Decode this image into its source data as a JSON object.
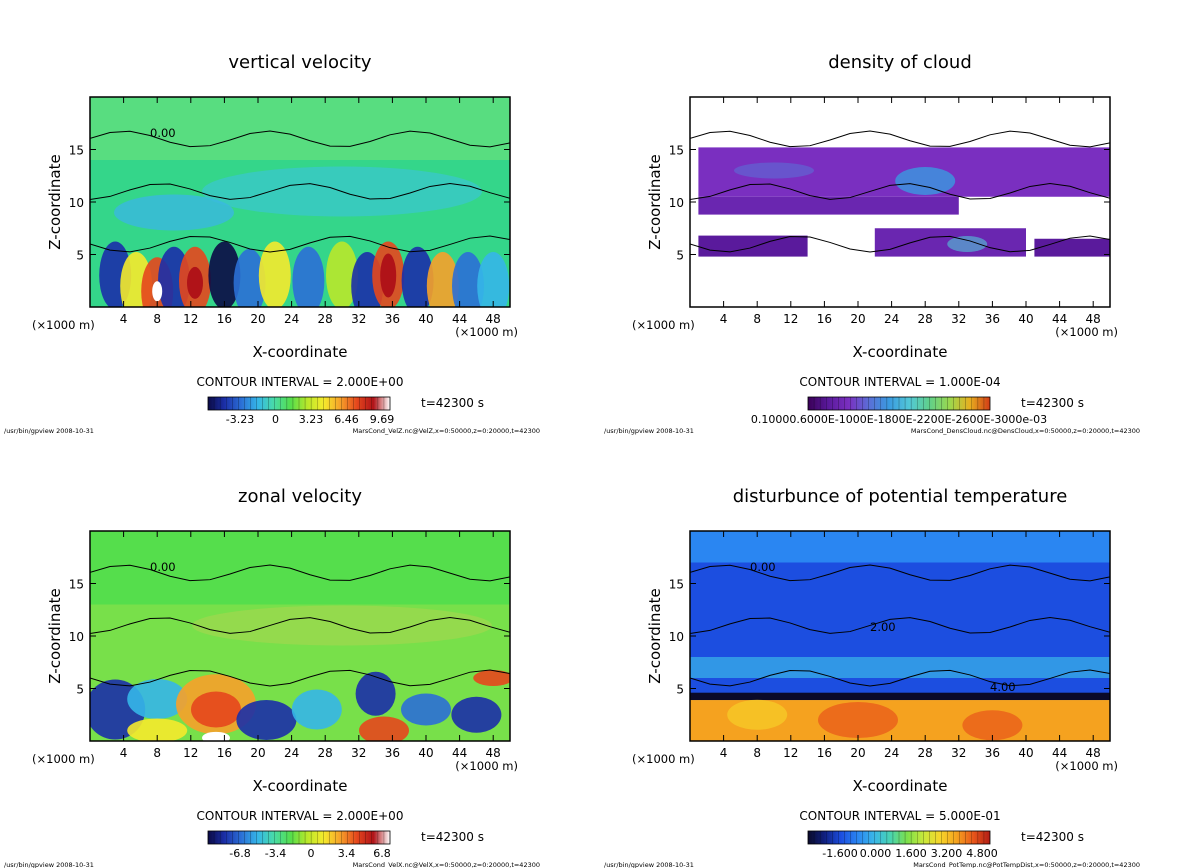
{
  "chart_data": [
    {
      "type": "heatmap",
      "title": "vertical velocity",
      "xlabel": "X-coordinate",
      "ylabel": "Z-coordinate",
      "x_unit": "(×1000 m)",
      "y_unit": "(×1000 m)",
      "xlim": [
        0,
        50
      ],
      "ylim": [
        0,
        20
      ],
      "xticks": [
        "4",
        "8",
        "12",
        "16",
        "20",
        "24",
        "28",
        "32",
        "36",
        "40",
        "44",
        "48"
      ],
      "yticks": [
        "5",
        "10",
        "15"
      ],
      "contour_interval": "CONTOUR INTERVAL = 2.000E+00",
      "time": "t=42300 s",
      "colorbar_ticks": [
        "-3.23",
        "0",
        "3.23",
        "6.46",
        "9.69"
      ],
      "contour_labels": [
        "0.00"
      ],
      "footer_left": "/usr/bin/gpview  2008-10-31",
      "footer_right": "MarsCond_VelZ.nc@VelZ,x=0:50000,z=0:20000,t=42300",
      "colormap": "rainbow"
    },
    {
      "type": "heatmap",
      "title": "density of cloud",
      "xlabel": "X-coordinate",
      "ylabel": "Z-coordinate",
      "x_unit": "(×1000 m)",
      "y_unit": "(×1000 m)",
      "xlim": [
        0,
        50
      ],
      "ylim": [
        0,
        20
      ],
      "xticks": [
        "4",
        "8",
        "12",
        "16",
        "20",
        "24",
        "28",
        "32",
        "36",
        "40",
        "44",
        "48"
      ],
      "yticks": [
        "5",
        "10",
        "15"
      ],
      "contour_interval": "CONTOUR INTERVAL = 1.000E-04",
      "time": "t=42300 s",
      "colorbar_ticks": [
        "0.10000.6000E-1000E-1800E-2200E-2600E-3000e-03"
      ],
      "contour_labels": [],
      "footer_left": "/usr/bin/gpview  2008-10-31",
      "footer_right": "MarsCond_DensCloud.nc@DensCloud,x=0:50000,z=0:20000,t=42300",
      "colormap": "purple-blue"
    },
    {
      "type": "heatmap",
      "title": "zonal velocity",
      "xlabel": "X-coordinate",
      "ylabel": "Z-coordinate",
      "x_unit": "(×1000 m)",
      "y_unit": "(×1000 m)",
      "xlim": [
        0,
        50
      ],
      "ylim": [
        0,
        20
      ],
      "xticks": [
        "4",
        "8",
        "12",
        "16",
        "20",
        "24",
        "28",
        "32",
        "36",
        "40",
        "44",
        "48"
      ],
      "yticks": [
        "5",
        "10",
        "15"
      ],
      "contour_interval": "CONTOUR INTERVAL = 2.000E+00",
      "time": "t=42300 s",
      "colorbar_ticks": [
        "-6.8",
        "-3.4",
        "0",
        "3.4",
        "6.8"
      ],
      "contour_labels": [
        "0.00"
      ],
      "footer_left": "/usr/bin/gpview  2008-10-31",
      "footer_right": "MarsCond_VelX.nc@VelX,x=0:50000,z=0:20000,t=42300",
      "colormap": "rainbow"
    },
    {
      "type": "heatmap",
      "title": "disturbunce of potential temperature",
      "xlabel": "X-coordinate",
      "ylabel": "Z-coordinate",
      "x_unit": "(×1000 m)",
      "y_unit": "(×1000 m)",
      "xlim": [
        0,
        50
      ],
      "ylim": [
        0,
        20
      ],
      "xticks": [
        "4",
        "8",
        "12",
        "16",
        "20",
        "24",
        "28",
        "32",
        "36",
        "40",
        "44",
        "48"
      ],
      "yticks": [
        "5",
        "10",
        "15"
      ],
      "contour_interval": "CONTOUR INTERVAL = 5.000E-01",
      "time": "t=42300 s",
      "colorbar_ticks": [
        "-1.600",
        "0.000",
        "1.600",
        "3.200",
        "4.800"
      ],
      "contour_labels": [
        "0.00",
        "2.00",
        "4.00"
      ],
      "footer_left": "/usr/bin/gpview  2008-10-31",
      "footer_right": "MarsCond_PotTemp.nc@PotTempDist,x=0:50000,z=0:20000,t=42300",
      "colormap": "blue-orange"
    }
  ]
}
